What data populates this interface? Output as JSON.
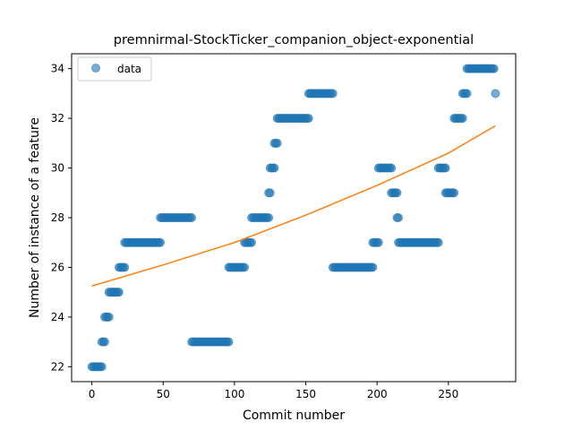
{
  "chart_data": {
    "type": "scatter",
    "title": "premnirmal-StockTicker_companion_object-exponential",
    "xlabel": "Commit number",
    "ylabel": "Number of instance of a feature",
    "xlim": [
      -14.2,
      297.2
    ],
    "ylim": [
      21.4,
      34.6
    ],
    "xticks": [
      0,
      50,
      100,
      150,
      200,
      250
    ],
    "yticks": [
      22,
      24,
      26,
      28,
      30,
      32,
      34
    ],
    "grid": false,
    "legend": {
      "position": "top-left",
      "entries": [
        "data"
      ]
    },
    "colors": {
      "data": "#1f77b4",
      "fit": "#ff7f0e"
    },
    "segments": [
      {
        "x_start": 0,
        "x_end": 7,
        "y": 22
      },
      {
        "x_start": 7,
        "x_end": 9,
        "y": 23
      },
      {
        "x_start": 9,
        "x_end": 12,
        "y": 24
      },
      {
        "x_start": 12,
        "x_end": 19,
        "y": 25
      },
      {
        "x_start": 19,
        "x_end": 23,
        "y": 26
      },
      {
        "x_start": 23,
        "x_end": 48,
        "y": 27
      },
      {
        "x_start": 48,
        "x_end": 70,
        "y": 28
      },
      {
        "x_start": 70,
        "x_end": 96,
        "y": 23
      },
      {
        "x_start": 96,
        "x_end": 107,
        "y": 26
      },
      {
        "x_start": 107,
        "x_end": 112,
        "y": 27
      },
      {
        "x_start": 112,
        "x_end": 124,
        "y": 28
      },
      {
        "x_start": 124,
        "x_end": 125,
        "y": 29
      },
      {
        "x_start": 125,
        "x_end": 128,
        "y": 30
      },
      {
        "x_start": 128,
        "x_end": 130,
        "y": 31
      },
      {
        "x_start": 130,
        "x_end": 152,
        "y": 32
      },
      {
        "x_start": 152,
        "x_end": 169,
        "y": 33
      },
      {
        "x_start": 169,
        "x_end": 197,
        "y": 26
      },
      {
        "x_start": 197,
        "x_end": 201,
        "y": 27
      },
      {
        "x_start": 201,
        "x_end": 210,
        "y": 30
      },
      {
        "x_start": 210,
        "x_end": 214,
        "y": 29
      },
      {
        "x_start": 214,
        "x_end": 215,
        "y": 28
      },
      {
        "x_start": 215,
        "x_end": 243,
        "y": 27
      },
      {
        "x_start": 243,
        "x_end": 248,
        "y": 30
      },
      {
        "x_start": 248,
        "x_end": 254,
        "y": 29
      },
      {
        "x_start": 254,
        "x_end": 260,
        "y": 32
      },
      {
        "x_start": 260,
        "x_end": 263,
        "y": 33
      },
      {
        "x_start": 263,
        "x_end": 282,
        "y": 34
      },
      {
        "x_start": 283,
        "x_end": 283,
        "y": 33
      }
    ],
    "fit": {
      "label": "exponential",
      "x": [
        0,
        50,
        100,
        150,
        200,
        250,
        283
      ],
      "y": [
        25.25,
        26.1,
        27.0,
        28.1,
        29.3,
        30.6,
        31.7
      ]
    }
  }
}
